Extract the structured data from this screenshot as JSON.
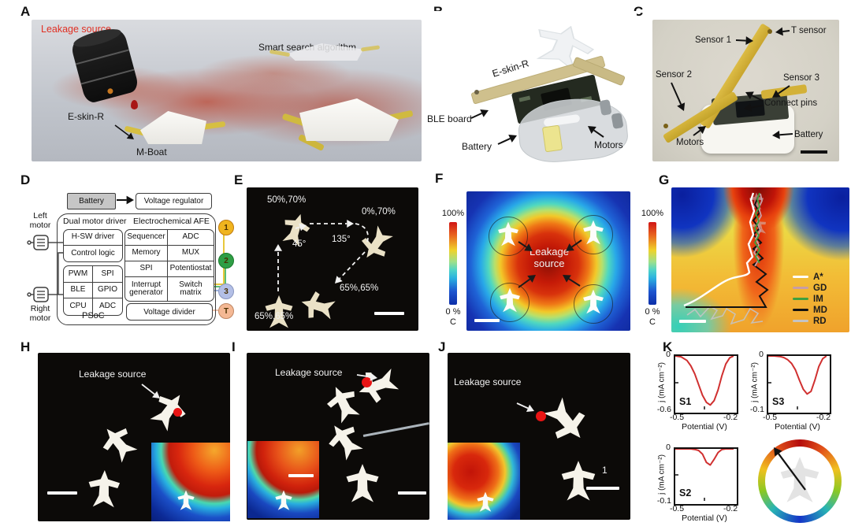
{
  "panels": {
    "A": {
      "label": "A",
      "leakage": "Leakage source",
      "algorithm": "Smart search algorithm",
      "eskin": "E-skin-R",
      "mboat": "M-Boat",
      "leak_color": "#e03024"
    },
    "B": {
      "label": "B",
      "eskin": "E-skin-R",
      "ble": "BLE board",
      "battery": "Battery",
      "motors": "Motors"
    },
    "C": {
      "label": "C",
      "t_sensor": "T sensor",
      "sensor1": "Sensor 1",
      "sensor2": "Sensor 2",
      "sensor3": "Sensor 3",
      "pins": "Connect pins",
      "motors": "Motors",
      "battery": "Battery"
    },
    "D": {
      "label": "D",
      "battery": "Battery",
      "regulator": "Voltage regulator",
      "left_motor": "Left motor",
      "right_motor": "Right motor",
      "driver_title": "Dual motor driver",
      "afe_title": "Electrochemical AFE",
      "hsw": "H-SW driver",
      "control": "Control logic",
      "pwm": "PWM",
      "spi": "SPI",
      "ble": "BLE",
      "gpio": "GPIO",
      "cpu": "CPU",
      "adc": "ADC",
      "afe": {
        "sequencer": "Sequencer",
        "adc": "ADC",
        "memory": "Memory",
        "mux": "MUX",
        "spi": "SPI",
        "potentiostat": "Potentiostat",
        "interrupt": "Interrupt generator",
        "switch": "Switch matrix"
      },
      "divider": "Voltage divider",
      "psoc": "PSoC",
      "nodes": [
        {
          "id": "1",
          "color": "#f0b41e",
          "border": "#c07b10",
          "line": "#e8c83c"
        },
        {
          "id": "2",
          "color": "#2f9e45",
          "border": "#1b7a2e",
          "line": "#5cbf77"
        },
        {
          "id": "3",
          "color": "#b3bfe6",
          "border": "#8a97c0",
          "line": "#9fb4de"
        },
        {
          "id": "T",
          "color": "#f4b894",
          "border": "#bf8765",
          "line": "#edc3ad"
        }
      ]
    },
    "E": {
      "label": "E",
      "p1": "50%,70%",
      "p2": "0%,70%",
      "a1": "45°",
      "a2": "135°",
      "p3": "65%,65%",
      "p4": "65%,65%"
    },
    "F": {
      "label": "F",
      "cmax": "100%",
      "cmin": "0 %",
      "cunit": "C",
      "source": "Leakage source"
    },
    "G": {
      "label": "G",
      "cmax": "100%",
      "cmin": "0 %",
      "cunit": "C",
      "legend": [
        {
          "label": "A*",
          "color": "#ffffff"
        },
        {
          "label": "GD",
          "color": "#c79da6"
        },
        {
          "label": "IM",
          "color": "#3ea03e"
        },
        {
          "label": "MD",
          "color": "#111111"
        },
        {
          "label": "RD",
          "color": "#c4c4c4"
        }
      ]
    },
    "H": {
      "label": "H",
      "leakage": "Leakage source"
    },
    "I": {
      "label": "I",
      "leakage": "Leakage source"
    },
    "J": {
      "label": "J",
      "leakage": "Leakage source",
      "num": "1"
    },
    "K": {
      "label": "K"
    }
  },
  "chart_data": {
    "type": "line",
    "note": "Cyclic-voltammetry style sensor responses, red curves",
    "curve_color": "#d03030",
    "plots": [
      {
        "name": "S1",
        "xlabel": "Potential (V)",
        "ylabel": "j (mA cm⁻²)",
        "xlim": [
          -0.5,
          -0.2
        ],
        "ylim": [
          -0.6,
          0
        ],
        "xticks": [
          "-0.5",
          "-0.2"
        ],
        "yticks": [
          "0",
          "-0.6"
        ],
        "x": [
          -0.5,
          -0.47,
          -0.44,
          -0.42,
          -0.4,
          -0.38,
          -0.36,
          -0.34,
          -0.32,
          -0.3,
          -0.28,
          -0.26,
          -0.24,
          -0.22,
          -0.2
        ],
        "y": [
          0,
          -0.01,
          -0.05,
          -0.11,
          -0.2,
          -0.32,
          -0.44,
          -0.52,
          -0.55,
          -0.5,
          -0.38,
          -0.22,
          -0.09,
          -0.02,
          0
        ]
      },
      {
        "name": "S3",
        "xlabel": "Potential (V)",
        "ylabel": "j (mA cm⁻²)",
        "xlim": [
          -0.5,
          -0.2
        ],
        "ylim": [
          -0.1,
          0
        ],
        "xticks": [
          "-0.5",
          "-0.2"
        ],
        "yticks": [
          "0",
          "-0.1"
        ],
        "x": [
          -0.5,
          -0.47,
          -0.44,
          -0.42,
          -0.4,
          -0.38,
          -0.36,
          -0.34,
          -0.32,
          -0.3,
          -0.28,
          -0.26,
          -0.24,
          -0.22,
          -0.2
        ],
        "y": [
          0,
          0,
          -0.001,
          -0.003,
          -0.007,
          -0.014,
          -0.026,
          -0.045,
          -0.062,
          -0.071,
          -0.066,
          -0.045,
          -0.02,
          -0.005,
          0
        ]
      },
      {
        "name": "S2",
        "xlabel": "Potential (V)",
        "ylabel": "j (mA cm⁻²)",
        "xlim": [
          -0.5,
          -0.2
        ],
        "ylim": [
          -0.1,
          0
        ],
        "xticks": [
          "-0.5",
          "-0.2"
        ],
        "yticks": [
          "0",
          "-0.1"
        ],
        "x": [
          -0.5,
          -0.47,
          -0.44,
          -0.42,
          -0.4,
          -0.38,
          -0.36,
          -0.34,
          -0.32,
          -0.3,
          -0.28,
          -0.26,
          -0.24,
          -0.22,
          -0.2
        ],
        "y": [
          0,
          0,
          0,
          0,
          -0.001,
          -0.003,
          -0.01,
          -0.026,
          -0.031,
          -0.02,
          -0.007,
          -0.001,
          0,
          0,
          0
        ]
      }
    ]
  }
}
